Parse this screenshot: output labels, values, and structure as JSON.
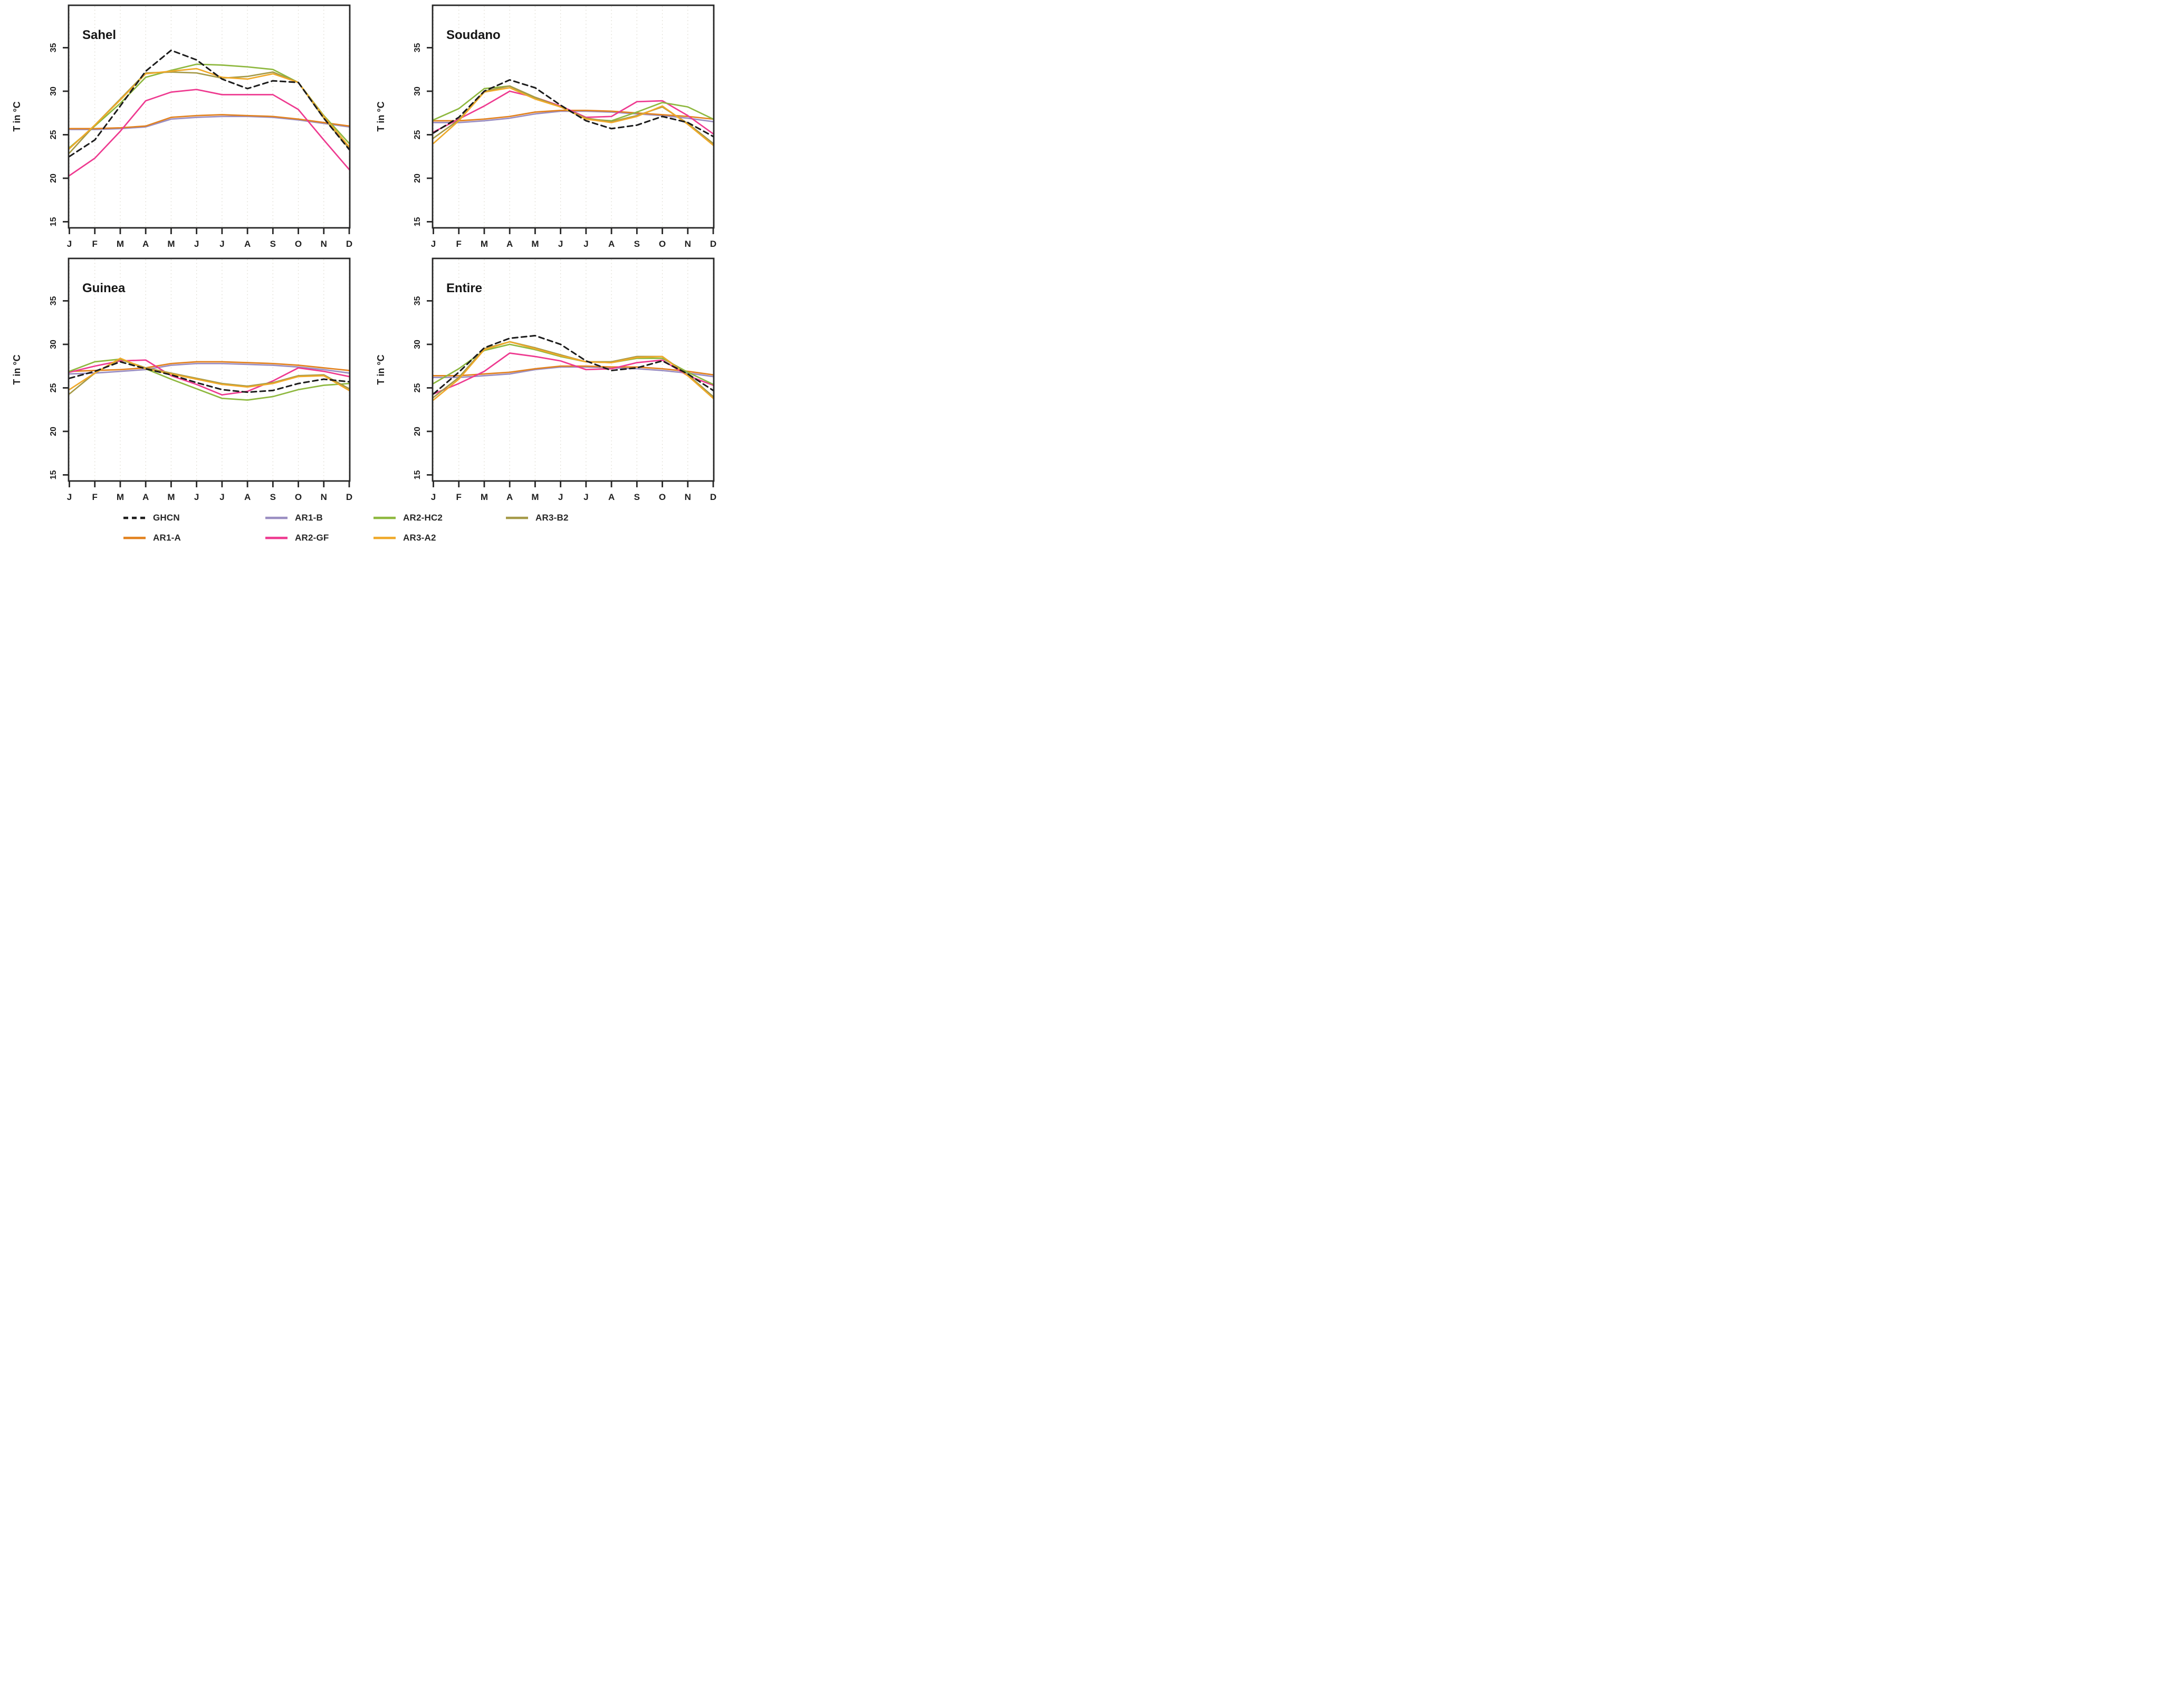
{
  "figure": {
    "background": "#ffffff",
    "axis_color": "#262626",
    "grid_color": "#dbd8cd",
    "text_color": "#1f1f1f",
    "ylab": "T in °C",
    "months": [
      "J",
      "F",
      "M",
      "A",
      "M",
      "J",
      "J",
      "A",
      "S",
      "O",
      "N",
      "D"
    ],
    "yticks": [
      "15",
      "20",
      "25",
      "30",
      "35"
    ]
  },
  "legend": {
    "items": [
      {
        "label": "GHCN",
        "series": "GHCN",
        "row": 0,
        "col": 0
      },
      {
        "label": "AR1-B",
        "series": "AR1-B",
        "row": 0,
        "col": 1
      },
      {
        "label": "AR2-HC2",
        "series": "AR2-HC2",
        "row": 0,
        "col": 2
      },
      {
        "label": "AR3-B2",
        "series": "AR3-B2",
        "row": 0,
        "col": 3
      },
      {
        "label": "AR1-A",
        "series": "AR1-A",
        "row": 1,
        "col": 0
      },
      {
        "label": "AR2-GF",
        "series": "AR2-GF",
        "row": 1,
        "col": 1
      },
      {
        "label": "AR3-A2",
        "series": "AR3-A2",
        "row": 1,
        "col": 2
      }
    ]
  },
  "series_styles": [
    {
      "name": "GHCN",
      "color": "#1c1c1c",
      "dashed": true
    },
    {
      "name": "AR1-A",
      "color": "#e2821f",
      "dashed": false
    },
    {
      "name": "AR1-B",
      "color": "#9a8ec2",
      "dashed": false
    },
    {
      "name": "AR2-GF",
      "color": "#ee3a90",
      "dashed": false
    },
    {
      "name": "AR2-HC2",
      "color": "#8eb83f",
      "dashed": false
    },
    {
      "name": "AR3-A2",
      "color": "#efa92a",
      "dashed": false
    },
    {
      "name": "AR3-B2",
      "color": "#a59a48",
      "dashed": false
    }
  ],
  "draw_order": [
    "AR1-B",
    "AR1-A",
    "AR2-GF",
    "AR2-HC2",
    "AR3-B2",
    "AR3-A2",
    "GHCN"
  ],
  "chart_data": [
    {
      "type": "line",
      "title": "Sahel",
      "xlabel": "",
      "ylabel": "T in °C",
      "categories": [
        "J",
        "F",
        "M",
        "A",
        "M",
        "J",
        "J",
        "A",
        "S",
        "O",
        "N",
        "D"
      ],
      "ylim": [
        14.3,
        40.2
      ],
      "grid": "vertical-dotted",
      "legend_position": "bottom",
      "series": [
        {
          "name": "GHCN",
          "values": [
            22.5,
            24.4,
            28.3,
            32.3,
            34.7,
            33.6,
            31.4,
            30.3,
            31.2,
            31.0,
            26.9,
            23.3
          ]
        },
        {
          "name": "AR1-A",
          "values": [
            25.7,
            25.7,
            25.8,
            26.0,
            27.0,
            27.2,
            27.3,
            27.2,
            27.1,
            26.8,
            26.4,
            26.0
          ]
        },
        {
          "name": "AR1-B",
          "values": [
            25.6,
            25.6,
            25.7,
            25.9,
            26.8,
            27.0,
            27.1,
            27.1,
            27.0,
            26.7,
            26.3,
            25.9
          ]
        },
        {
          "name": "AR2-GF",
          "values": [
            20.3,
            22.3,
            25.4,
            28.9,
            29.9,
            30.2,
            29.6,
            29.6,
            29.6,
            27.9,
            24.4,
            21.0
          ]
        },
        {
          "name": "AR2-HC2",
          "values": [
            23.5,
            26.0,
            28.6,
            31.6,
            32.4,
            33.1,
            33.0,
            32.8,
            32.5,
            31.0,
            27.2,
            24.0
          ]
        },
        {
          "name": "AR3-A2",
          "values": [
            23.4,
            26.1,
            29.0,
            32.0,
            32.3,
            32.6,
            31.6,
            31.4,
            32.0,
            31.0,
            27.1,
            23.6
          ]
        },
        {
          "name": "AR3-B2",
          "values": [
            22.9,
            26.1,
            29.1,
            32.1,
            32.2,
            32.1,
            31.5,
            31.7,
            32.2,
            31.0,
            26.9,
            23.4
          ]
        }
      ]
    },
    {
      "type": "line",
      "title": "Soudano",
      "xlabel": "",
      "ylabel": "T in °C",
      "categories": [
        "J",
        "F",
        "M",
        "A",
        "M",
        "J",
        "J",
        "A",
        "S",
        "O",
        "N",
        "D"
      ],
      "ylim": [
        14.3,
        40.2
      ],
      "grid": "vertical-dotted",
      "legend_position": "bottom",
      "series": [
        {
          "name": "GHCN",
          "values": [
            25.2,
            27.0,
            30.0,
            31.3,
            30.4,
            28.4,
            26.6,
            25.7,
            26.1,
            27.1,
            26.4,
            24.8
          ]
        },
        {
          "name": "AR1-A",
          "values": [
            26.6,
            26.6,
            26.8,
            27.1,
            27.6,
            27.8,
            27.8,
            27.7,
            27.5,
            27.3,
            27.1,
            26.8
          ]
        },
        {
          "name": "AR1-B",
          "values": [
            26.4,
            26.4,
            26.6,
            26.9,
            27.4,
            27.7,
            27.7,
            27.6,
            27.4,
            27.2,
            26.9,
            26.5
          ]
        },
        {
          "name": "AR2-GF",
          "values": [
            25.3,
            26.8,
            28.3,
            30.0,
            29.3,
            28.3,
            27.0,
            27.1,
            28.8,
            28.9,
            27.2,
            25.1
          ]
        },
        {
          "name": "AR2-HC2",
          "values": [
            26.7,
            28.0,
            30.3,
            30.6,
            29.2,
            28.2,
            26.8,
            26.6,
            27.6,
            28.7,
            28.2,
            26.8
          ]
        },
        {
          "name": "AR3-A2",
          "values": [
            24.0,
            26.6,
            29.9,
            30.4,
            29.1,
            28.2,
            26.8,
            26.4,
            27.1,
            28.3,
            26.2,
            23.8
          ]
        },
        {
          "name": "AR3-B2",
          "values": [
            24.6,
            26.7,
            30.0,
            30.6,
            29.3,
            28.2,
            26.9,
            26.5,
            27.2,
            28.2,
            26.3,
            24.0
          ]
        }
      ]
    },
    {
      "type": "line",
      "title": "Guinea",
      "xlabel": "",
      "ylabel": "T in °C",
      "categories": [
        "J",
        "F",
        "M",
        "A",
        "M",
        "J",
        "J",
        "A",
        "S",
        "O",
        "N",
        "D"
      ],
      "ylim": [
        14.3,
        40.2
      ],
      "grid": "vertical-dotted",
      "legend_position": "bottom",
      "series": [
        {
          "name": "GHCN",
          "values": [
            26.1,
            26.9,
            28.0,
            27.2,
            26.5,
            25.6,
            24.8,
            24.5,
            24.7,
            25.5,
            26.0,
            25.7
          ]
        },
        {
          "name": "AR1-A",
          "values": [
            26.9,
            27.0,
            27.1,
            27.3,
            27.8,
            28.0,
            28.0,
            27.9,
            27.8,
            27.6,
            27.3,
            27.0
          ]
        },
        {
          "name": "AR1-B",
          "values": [
            26.6,
            26.7,
            26.9,
            27.1,
            27.6,
            27.8,
            27.8,
            27.7,
            27.6,
            27.4,
            27.1,
            26.7
          ]
        },
        {
          "name": "AR2-GF",
          "values": [
            26.8,
            27.5,
            28.1,
            28.2,
            26.4,
            25.4,
            24.2,
            24.6,
            25.8,
            27.3,
            26.9,
            26.3
          ]
        },
        {
          "name": "AR2-HC2",
          "values": [
            26.9,
            28.0,
            28.3,
            27.2,
            26.0,
            24.9,
            23.8,
            23.6,
            24.0,
            24.8,
            25.3,
            25.5
          ]
        },
        {
          "name": "AR3-A2",
          "values": [
            24.8,
            26.7,
            28.4,
            27.2,
            26.6,
            26.0,
            25.4,
            25.1,
            25.5,
            26.3,
            26.4,
            24.7
          ]
        },
        {
          "name": "AR3-B2",
          "values": [
            24.3,
            26.7,
            28.3,
            27.3,
            26.7,
            26.1,
            25.5,
            25.2,
            25.6,
            26.4,
            26.5,
            24.9
          ]
        }
      ]
    },
    {
      "type": "line",
      "title": "Entire",
      "xlabel": "",
      "ylabel": "T in °C",
      "categories": [
        "J",
        "F",
        "M",
        "A",
        "M",
        "J",
        "J",
        "A",
        "S",
        "O",
        "N",
        "D"
      ],
      "ylim": [
        14.3,
        40.2
      ],
      "grid": "vertical-dotted",
      "legend_position": "bottom",
      "series": [
        {
          "name": "GHCN",
          "values": [
            24.3,
            26.8,
            29.6,
            30.7,
            31.0,
            30.0,
            28.1,
            27.0,
            27.3,
            28.1,
            26.6,
            24.7
          ]
        },
        {
          "name": "AR1-A",
          "values": [
            26.4,
            26.4,
            26.6,
            26.8,
            27.2,
            27.5,
            27.5,
            27.4,
            27.4,
            27.2,
            26.9,
            26.5
          ]
        },
        {
          "name": "AR1-B",
          "values": [
            26.2,
            26.2,
            26.4,
            26.6,
            27.1,
            27.4,
            27.4,
            27.3,
            27.2,
            27.0,
            26.7,
            26.3
          ]
        },
        {
          "name": "AR2-GF",
          "values": [
            24.3,
            25.5,
            26.9,
            29.0,
            28.6,
            28.1,
            27.1,
            27.2,
            27.9,
            28.2,
            26.4,
            25.3
          ]
        },
        {
          "name": "AR2-HC2",
          "values": [
            25.5,
            27.2,
            29.3,
            30.0,
            29.4,
            28.6,
            28.0,
            27.9,
            28.4,
            28.4,
            26.8,
            25.4
          ]
        },
        {
          "name": "AR3-A2",
          "values": [
            23.6,
            26.0,
            29.4,
            30.3,
            29.5,
            28.7,
            28.0,
            27.9,
            28.5,
            28.6,
            26.4,
            23.8
          ]
        },
        {
          "name": "AR3-B2",
          "values": [
            23.9,
            26.2,
            29.5,
            30.3,
            29.6,
            28.8,
            28.0,
            28.0,
            28.6,
            28.6,
            26.5,
            24.0
          ]
        }
      ]
    }
  ]
}
